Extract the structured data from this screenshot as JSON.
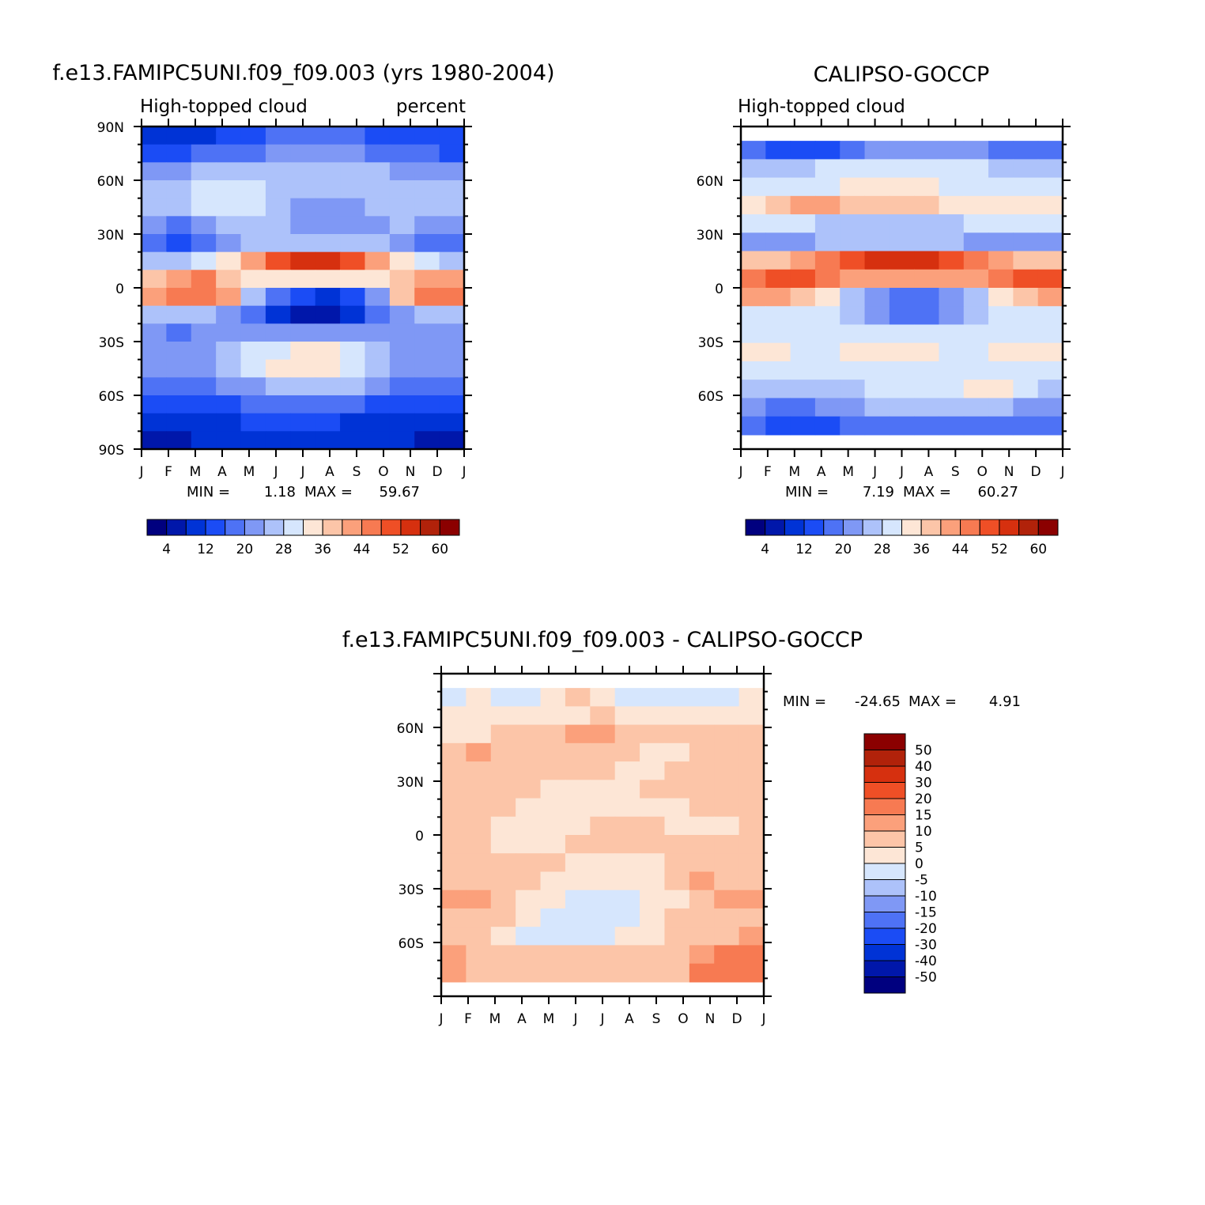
{
  "chart_data": [
    {
      "type": "heatmap",
      "title": "f.e13.FAMIPC5UNI.f09_f09.003 (yrs 1980-2004)",
      "left_label": "High-topped cloud",
      "right_label": "percent",
      "x_labels": [
        "J",
        "F",
        "M",
        "A",
        "M",
        "J",
        "J",
        "A",
        "S",
        "O",
        "N",
        "D",
        "J"
      ],
      "y_labels": [
        "90N",
        "60N",
        "30N",
        "0",
        "30S",
        "60S",
        "90S"
      ],
      "ylim": [
        -90,
        90
      ],
      "stats": {
        "min_label": "MIN =",
        "min_value": "1.18",
        "max_label": "MAX =",
        "max_value": "59.67"
      },
      "colorbar": {
        "orientation": "horizontal",
        "levels": [
          "4",
          "12",
          "20",
          "28",
          "36",
          "44",
          "52",
          "60"
        ],
        "colors": [
          "#00007f",
          "#0017aa",
          "#0033d6",
          "#1b4cf5",
          "#4e72f5",
          "#7f98f5",
          "#adc2fa",
          "#d6e6fd",
          "#fde6d6",
          "#fcc5a8",
          "#fba07b",
          "#f77a52",
          "#ef4f26",
          "#d6300f",
          "#b1220a",
          "#8b0000"
        ]
      },
      "field": [
        [
          2,
          2,
          2,
          3,
          3,
          4,
          4,
          4,
          4,
          3,
          3,
          3,
          3
        ],
        [
          3,
          3,
          4,
          4,
          4,
          5,
          5,
          5,
          5,
          4,
          4,
          4,
          3
        ],
        [
          5,
          5,
          6,
          6,
          6,
          6,
          6,
          6,
          6,
          6,
          5,
          5,
          5
        ],
        [
          6,
          6,
          7,
          7,
          7,
          6,
          6,
          6,
          6,
          6,
          6,
          6,
          6
        ],
        [
          6,
          6,
          7,
          7,
          7,
          6,
          5,
          5,
          5,
          6,
          6,
          6,
          6
        ],
        [
          5,
          4,
          5,
          6,
          6,
          6,
          5,
          5,
          5,
          5,
          6,
          5,
          5
        ],
        [
          4,
          3,
          4,
          5,
          6,
          6,
          6,
          6,
          6,
          6,
          5,
          4,
          4
        ],
        [
          6,
          6,
          7,
          8,
          10,
          12,
          13,
          13,
          12,
          10,
          8,
          7,
          6
        ],
        [
          9,
          10,
          11,
          9,
          8,
          8,
          8,
          8,
          8,
          8,
          9,
          10,
          10
        ],
        [
          10,
          11,
          11,
          10,
          6,
          4,
          3,
          2,
          3,
          5,
          9,
          11,
          11
        ],
        [
          6,
          6,
          6,
          5,
          4,
          2,
          1,
          1,
          2,
          4,
          5,
          6,
          6
        ],
        [
          5,
          4,
          5,
          5,
          5,
          5,
          5,
          5,
          5,
          5,
          5,
          5,
          5
        ],
        [
          5,
          5,
          5,
          6,
          7,
          7,
          8,
          8,
          7,
          6,
          5,
          5,
          5
        ],
        [
          5,
          5,
          5,
          6,
          7,
          8,
          8,
          8,
          7,
          6,
          5,
          5,
          5
        ],
        [
          4,
          4,
          4,
          5,
          5,
          6,
          6,
          6,
          6,
          5,
          4,
          4,
          4
        ],
        [
          3,
          3,
          3,
          3,
          4,
          4,
          4,
          4,
          4,
          3,
          3,
          3,
          3
        ],
        [
          2,
          2,
          2,
          2,
          3,
          3,
          3,
          3,
          2,
          2,
          2,
          2,
          2
        ],
        [
          1,
          1,
          2,
          2,
          2,
          2,
          2,
          2,
          2,
          2,
          2,
          1,
          1
        ]
      ]
    },
    {
      "type": "heatmap",
      "title": "CALIPSO-GOCCP",
      "left_label": "High-topped cloud",
      "x_labels": [
        "J",
        "F",
        "M",
        "A",
        "M",
        "J",
        "J",
        "A",
        "S",
        "O",
        "N",
        "D",
        "J"
      ],
      "y_labels": [
        "60N",
        "30N",
        "0",
        "30S",
        "60S"
      ],
      "ylim": [
        -90,
        90
      ],
      "data_lat_range": [
        -82,
        82
      ],
      "stats": {
        "min_label": "MIN =",
        "min_value": "7.19",
        "max_label": "MAX =",
        "max_value": "60.27"
      },
      "colorbar": {
        "orientation": "horizontal",
        "levels": [
          "4",
          "12",
          "20",
          "28",
          "36",
          "44",
          "52",
          "60"
        ],
        "colors": [
          "#00007f",
          "#0017aa",
          "#0033d6",
          "#1b4cf5",
          "#4e72f5",
          "#7f98f5",
          "#adc2fa",
          "#d6e6fd",
          "#fde6d6",
          "#fcc5a8",
          "#fba07b",
          "#f77a52",
          "#ef4f26",
          "#d6300f",
          "#b1220a",
          "#8b0000"
        ]
      },
      "field": [
        [
          4,
          3,
          3,
          3,
          4,
          5,
          5,
          5,
          5,
          5,
          4,
          4,
          4
        ],
        [
          6,
          6,
          6,
          7,
          7,
          7,
          7,
          7,
          7,
          7,
          6,
          6,
          6
        ],
        [
          7,
          7,
          7,
          7,
          8,
          8,
          8,
          8,
          7,
          7,
          7,
          7,
          7
        ],
        [
          8,
          9,
          10,
          10,
          9,
          9,
          9,
          9,
          8,
          8,
          8,
          8,
          8
        ],
        [
          7,
          7,
          7,
          6,
          6,
          6,
          6,
          6,
          6,
          7,
          7,
          7,
          7
        ],
        [
          5,
          5,
          5,
          6,
          6,
          6,
          6,
          6,
          6,
          5,
          5,
          5,
          5
        ],
        [
          9,
          9,
          10,
          11,
          12,
          13,
          13,
          13,
          12,
          11,
          10,
          9,
          9
        ],
        [
          11,
          12,
          12,
          11,
          10,
          10,
          10,
          10,
          10,
          10,
          11,
          12,
          12
        ],
        [
          10,
          10,
          9,
          8,
          6,
          5,
          4,
          4,
          5,
          6,
          8,
          9,
          10
        ],
        [
          7,
          7,
          7,
          7,
          6,
          5,
          4,
          4,
          5,
          6,
          7,
          7,
          7
        ],
        [
          7,
          7,
          7,
          7,
          7,
          7,
          7,
          7,
          7,
          7,
          7,
          7,
          7
        ],
        [
          8,
          8,
          7,
          7,
          8,
          8,
          8,
          8,
          7,
          7,
          8,
          8,
          8
        ],
        [
          7,
          7,
          7,
          7,
          7,
          7,
          7,
          7,
          7,
          7,
          7,
          7,
          7
        ],
        [
          6,
          6,
          6,
          6,
          6,
          7,
          7,
          7,
          7,
          8,
          8,
          7,
          6
        ],
        [
          5,
          4,
          4,
          5,
          5,
          6,
          6,
          6,
          6,
          6,
          6,
          5,
          5
        ],
        [
          4,
          3,
          3,
          3,
          4,
          4,
          4,
          4,
          4,
          4,
          4,
          4,
          4
        ]
      ]
    },
    {
      "type": "heatmap",
      "title": "f.e13.FAMIPC5UNI.f09_f09.003 - CALIPSO-GOCCP",
      "x_labels": [
        "J",
        "F",
        "M",
        "A",
        "M",
        "J",
        "J",
        "A",
        "S",
        "O",
        "N",
        "D",
        "J"
      ],
      "y_labels": [
        "60N",
        "30N",
        "0",
        "30S",
        "60S"
      ],
      "ylim": [
        -90,
        90
      ],
      "data_lat_range": [
        -82,
        82
      ],
      "stats": {
        "min_label": "MIN =",
        "min_value": "-24.65",
        "max_label": "MAX =",
        "max_value": "4.91"
      },
      "colorbar": {
        "orientation": "vertical",
        "levels": [
          "50",
          "40",
          "30",
          "20",
          "15",
          "10",
          "5",
          "0",
          "-5",
          "-10",
          "-15",
          "-20",
          "-30",
          "-40",
          "-50"
        ],
        "colors": [
          "#8b0000",
          "#b1220a",
          "#d6300f",
          "#ef4f26",
          "#f77a52",
          "#fba07b",
          "#fcc5a8",
          "#fde6d6",
          "#d6e6fd",
          "#adc2fa",
          "#7f98f5",
          "#4e72f5",
          "#1b4cf5",
          "#0033d6",
          "#0017aa",
          "#00007f"
        ]
      },
      "field": [
        [
          8,
          7,
          8,
          8,
          7,
          6,
          7,
          8,
          8,
          8,
          8,
          8,
          7
        ],
        [
          7,
          7,
          7,
          7,
          7,
          7,
          6,
          7,
          7,
          7,
          7,
          7,
          7
        ],
        [
          7,
          7,
          6,
          6,
          6,
          5,
          5,
          6,
          6,
          6,
          6,
          6,
          6
        ],
        [
          6,
          5,
          6,
          6,
          6,
          6,
          6,
          6,
          7,
          7,
          6,
          6,
          6
        ],
        [
          6,
          6,
          6,
          6,
          6,
          6,
          6,
          7,
          7,
          6,
          6,
          6,
          6
        ],
        [
          6,
          6,
          6,
          6,
          7,
          7,
          7,
          7,
          6,
          6,
          6,
          6,
          6
        ],
        [
          6,
          6,
          6,
          7,
          7,
          7,
          7,
          7,
          7,
          7,
          6,
          6,
          6
        ],
        [
          6,
          6,
          7,
          7,
          7,
          7,
          6,
          6,
          6,
          7,
          7,
          7,
          6
        ],
        [
          6,
          6,
          7,
          7,
          7,
          6,
          6,
          6,
          6,
          6,
          6,
          6,
          6
        ],
        [
          6,
          6,
          6,
          6,
          6,
          7,
          7,
          7,
          7,
          6,
          6,
          6,
          6
        ],
        [
          6,
          6,
          6,
          6,
          7,
          7,
          7,
          7,
          7,
          6,
          5,
          6,
          6
        ],
        [
          5,
          5,
          6,
          7,
          7,
          8,
          8,
          8,
          7,
          7,
          6,
          5,
          5
        ],
        [
          6,
          6,
          6,
          7,
          8,
          8,
          8,
          8,
          7,
          6,
          6,
          6,
          6
        ],
        [
          6,
          6,
          7,
          8,
          8,
          8,
          8,
          7,
          7,
          6,
          6,
          6,
          5
        ],
        [
          5,
          6,
          6,
          6,
          6,
          6,
          6,
          6,
          6,
          6,
          5,
          4,
          4
        ],
        [
          5,
          6,
          6,
          6,
          6,
          6,
          6,
          6,
          6,
          6,
          4,
          4,
          4
        ]
      ]
    }
  ]
}
